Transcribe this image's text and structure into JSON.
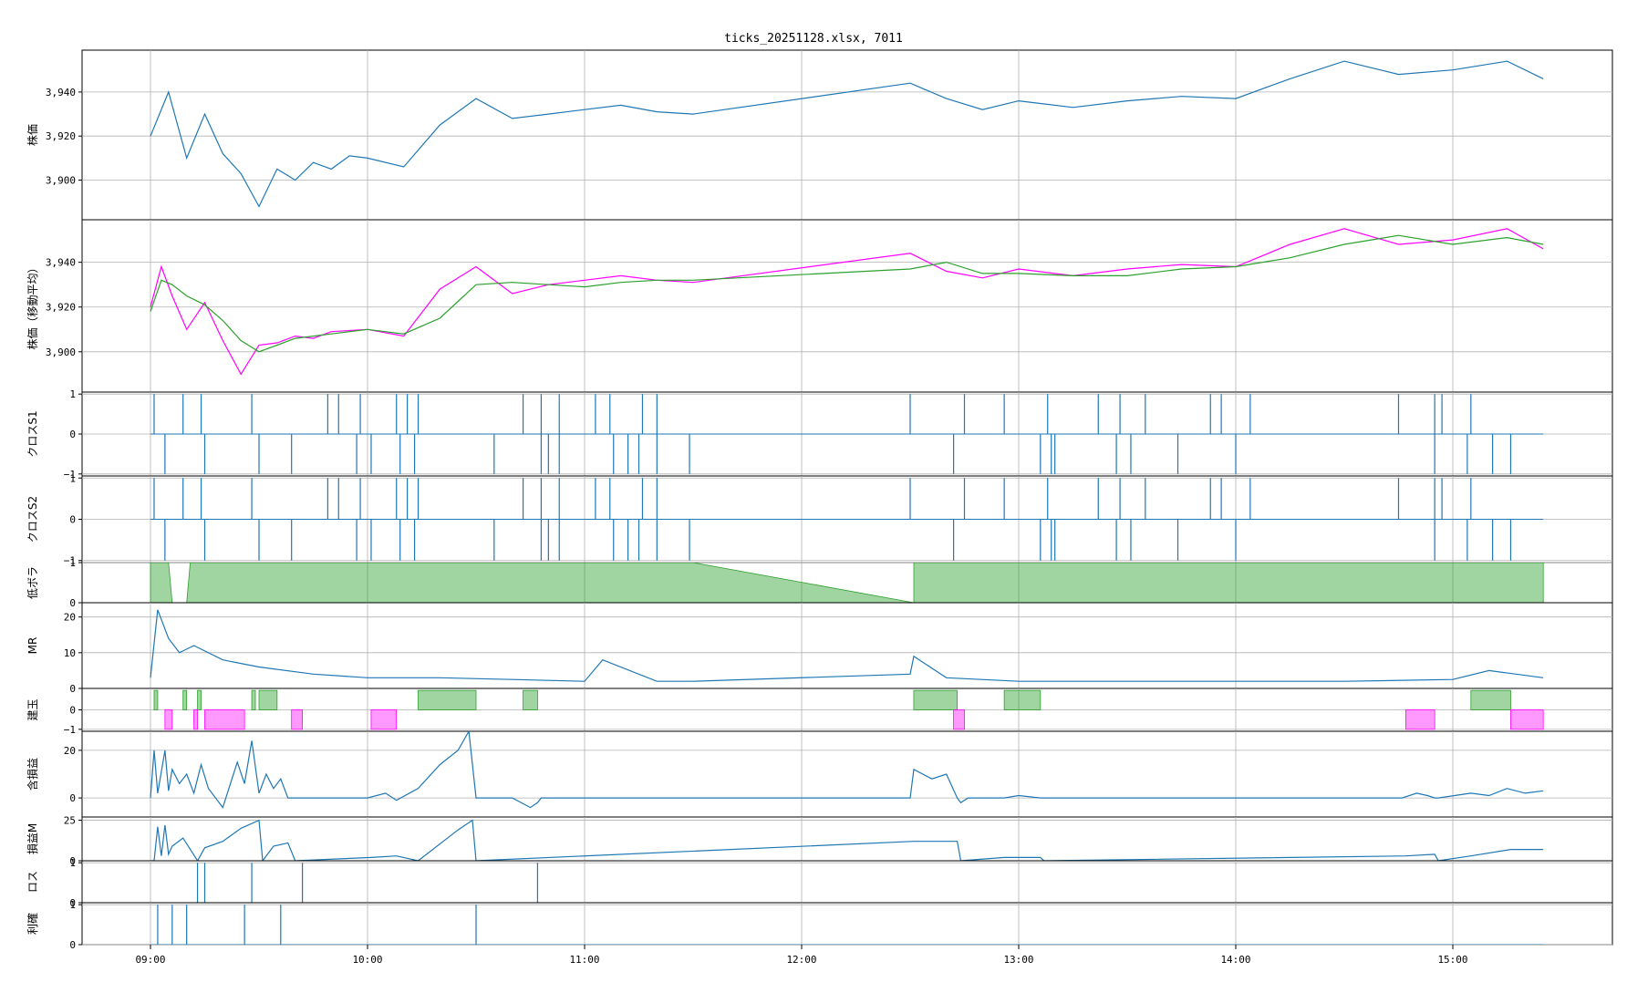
{
  "title": "ticks_20251128.xlsx, 7011",
  "colors": {
    "primary": "#1f77b4",
    "magenta": "#ff00ff",
    "green": "#2ca02c",
    "grid": "#b0b0b0",
    "axis": "#000000"
  },
  "x_ticks": [
    "09:00",
    "10:00",
    "11:00",
    "12:00",
    "13:00",
    "14:00",
    "15:00"
  ],
  "chart_data": [
    {
      "type": "line",
      "ylabel": "株価",
      "ylim": [
        3882,
        3959
      ],
      "yticks": [
        3900,
        3920,
        3940
      ],
      "ytick_labels": [
        "3,900",
        "3,920",
        "3,940"
      ],
      "series": [
        {
          "times": [
            "09:00",
            "09:05",
            "09:10",
            "09:15",
            "09:20",
            "09:25",
            "09:30",
            "09:35",
            "09:40",
            "09:45",
            "09:50",
            "09:55",
            "10:00",
            "10:10",
            "10:20",
            "10:30",
            "10:40",
            "10:50",
            "11:00",
            "11:10",
            "11:20",
            "11:30",
            "12:30",
            "12:40",
            "12:50",
            "13:00",
            "13:15",
            "13:30",
            "13:45",
            "14:00",
            "14:15",
            "14:30",
            "14:45",
            "15:00",
            "15:15",
            "15:25"
          ],
          "values": [
            3920,
            3940,
            3910,
            3930,
            3912,
            3903,
            3888,
            3905,
            3900,
            3908,
            3905,
            3911,
            3910,
            3906,
            3925,
            3937,
            3928,
            3930,
            3932,
            3934,
            3931,
            3930,
            3944,
            3937,
            3932,
            3936,
            3933,
            3936,
            3938,
            3937,
            3946,
            3954,
            3948,
            3950,
            3954,
            3946
          ]
        }
      ]
    },
    {
      "type": "line",
      "ylabel": "株価（移動平均）",
      "ylim": [
        3882,
        3959
      ],
      "yticks": [
        3900,
        3920,
        3940
      ],
      "ytick_labels": [
        "3,900",
        "3,920",
        "3,940"
      ],
      "series": [
        {
          "times": [
            "09:00",
            "09:03",
            "09:06",
            "09:10",
            "09:15",
            "09:20",
            "09:25",
            "09:30",
            "09:35",
            "09:40",
            "09:45",
            "09:50",
            "10:00",
            "10:10",
            "10:20",
            "10:30",
            "10:40",
            "10:50",
            "11:00",
            "11:10",
            "11:20",
            "11:30",
            "12:30",
            "12:40",
            "12:50",
            "13:00",
            "13:15",
            "13:30",
            "13:45",
            "14:00",
            "14:15",
            "14:30",
            "14:45",
            "15:00",
            "15:15",
            "15:25"
          ],
          "values": [
            3920,
            3938,
            3925,
            3910,
            3922,
            3905,
            3890,
            3903,
            3904,
            3907,
            3906,
            3909,
            3910,
            3907,
            3928,
            3938,
            3926,
            3930,
            3932,
            3934,
            3932,
            3931,
            3944,
            3936,
            3933,
            3937,
            3934,
            3937,
            3939,
            3938,
            3948,
            3955,
            3948,
            3950,
            3955,
            3946
          ]
        },
        {
          "times": [
            "09:00",
            "09:03",
            "09:06",
            "09:10",
            "09:15",
            "09:20",
            "09:25",
            "09:30",
            "09:35",
            "09:40",
            "09:45",
            "09:50",
            "10:00",
            "10:10",
            "10:20",
            "10:30",
            "10:40",
            "10:50",
            "11:00",
            "11:10",
            "11:20",
            "11:30",
            "12:30",
            "12:40",
            "12:50",
            "13:00",
            "13:15",
            "13:30",
            "13:45",
            "14:00",
            "14:15",
            "14:30",
            "14:45",
            "15:00",
            "15:15",
            "15:25"
          ],
          "values": [
            3918,
            3932,
            3930,
            3925,
            3921,
            3914,
            3905,
            3900,
            3903,
            3906,
            3907,
            3908,
            3910,
            3908,
            3915,
            3930,
            3931,
            3930,
            3929,
            3931,
            3932,
            3932,
            3937,
            3940,
            3935,
            3935,
            3934,
            3934,
            3937,
            3938,
            3942,
            3948,
            3952,
            3948,
            3951,
            3948
          ]
        }
      ]
    },
    {
      "type": "event",
      "ylabel": "クロスS1",
      "ylim": [
        -1.05,
        1.05
      ],
      "yticks": [
        -1,
        0,
        1
      ],
      "ytick_labels": [
        "−1",
        "0",
        "1"
      ],
      "up_times": [
        "09:01",
        "09:09",
        "09:14",
        "09:28",
        "09:49",
        "09:52",
        "09:58",
        "10:08",
        "10:11",
        "10:14",
        "10:43",
        "10:48",
        "10:53",
        "11:03",
        "11:07",
        "11:16",
        "11:20",
        "12:30",
        "12:45",
        "12:56",
        "13:08",
        "13:22",
        "13:28",
        "13:35",
        "13:53",
        "13:56",
        "14:04",
        "14:45",
        "14:55",
        "14:57",
        "15:05"
      ],
      "down_times": [
        "09:04",
        "09:15",
        "09:30",
        "09:39",
        "09:57",
        "10:01",
        "10:09",
        "10:13",
        "10:35",
        "10:48",
        "10:50",
        "10:53",
        "11:08",
        "11:12",
        "11:15",
        "11:20",
        "11:29",
        "12:42",
        "13:06",
        "13:09",
        "13:10",
        "13:27",
        "13:31",
        "13:44",
        "14:00",
        "14:55",
        "15:04",
        "15:11",
        "15:16"
      ]
    },
    {
      "type": "event",
      "ylabel": "クロスS2",
      "ylim": [
        -1.05,
        1.05
      ],
      "yticks": [
        -1,
        0,
        1
      ],
      "ytick_labels": [
        "−1",
        "0",
        "1"
      ],
      "up_times": [
        "09:01",
        "09:09",
        "09:14",
        "09:28",
        "09:49",
        "09:52",
        "09:58",
        "10:08",
        "10:11",
        "10:14",
        "10:43",
        "10:48",
        "10:53",
        "11:03",
        "11:07",
        "11:16",
        "11:20",
        "12:30",
        "12:45",
        "12:56",
        "13:08",
        "13:22",
        "13:28",
        "13:35",
        "13:53",
        "13:56",
        "14:04",
        "14:45",
        "14:55",
        "14:57",
        "15:05"
      ],
      "down_times": [
        "09:04",
        "09:15",
        "09:30",
        "09:39",
        "09:57",
        "10:01",
        "10:09",
        "10:13",
        "10:35",
        "10:48",
        "10:50",
        "10:53",
        "11:08",
        "11:12",
        "11:15",
        "11:20",
        "11:29",
        "12:42",
        "13:06",
        "13:09",
        "13:10",
        "13:27",
        "13:31",
        "13:44",
        "14:00",
        "14:55",
        "15:04",
        "15:11",
        "15:16"
      ]
    },
    {
      "type": "area",
      "ylabel": "低ボラ",
      "ylim": [
        0,
        1
      ],
      "yticks": [
        0,
        1
      ],
      "ytick_labels": [
        "0",
        "1"
      ],
      "segments": [
        {
          "times": [
            "09:00",
            "09:05",
            "09:06",
            "09:10",
            "09:11",
            "09:30",
            "09:31",
            "10:00",
            "10:01",
            "10:30",
            "10:31",
            "11:00",
            "11:01",
            "11:25",
            "11:30",
            "12:31",
            "12:31",
            "13:00",
            "13:01",
            "13:30",
            "13:31",
            "14:00",
            "14:01",
            "14:30",
            "14:31",
            "15:00",
            "15:01",
            "15:25"
          ],
          "values": [
            1,
            1,
            0,
            0,
            1,
            1,
            1,
            1,
            1,
            1,
            1,
            1,
            1,
            1,
            1,
            0,
            1,
            1,
            1,
            1,
            1,
            1,
            1,
            1,
            1,
            1,
            1,
            1
          ]
        }
      ]
    },
    {
      "type": "line",
      "ylabel": "MR",
      "ylim": [
        0,
        24
      ],
      "yticks": [
        0,
        10,
        20
      ],
      "ytick_labels": [
        "0",
        "10",
        "20"
      ],
      "series": [
        {
          "times": [
            "09:00",
            "09:02",
            "09:05",
            "09:08",
            "09:12",
            "09:20",
            "09:30",
            "09:45",
            "10:00",
            "10:20",
            "10:40",
            "11:00",
            "11:05",
            "11:20",
            "11:30",
            "12:30",
            "12:31",
            "12:40",
            "13:00",
            "13:30",
            "14:00",
            "14:30",
            "15:00",
            "15:10",
            "15:25"
          ],
          "values": [
            3,
            22,
            14,
            10,
            12,
            8,
            6,
            4,
            3,
            3,
            2.5,
            2,
            8,
            2,
            2,
            4,
            9,
            3,
            2,
            2,
            2,
            2,
            2.5,
            5,
            3
          ]
        }
      ]
    },
    {
      "type": "position",
      "ylabel": "建玉",
      "ylim": [
        -1.1,
        1.1
      ],
      "yticks": [
        -1,
        0
      ],
      "ytick_labels": [
        "−1",
        "0"
      ],
      "long_intervals": [
        [
          "09:01",
          "09:02"
        ],
        [
          "09:09",
          "09:10"
        ],
        [
          "09:13",
          "09:14"
        ],
        [
          "09:28",
          "09:29"
        ],
        [
          "09:30",
          "09:35"
        ],
        [
          "10:14",
          "10:30"
        ],
        [
          "10:43",
          "10:47"
        ],
        [
          "12:31",
          "12:43"
        ],
        [
          "12:56",
          "13:06"
        ],
        [
          "15:05",
          "15:16"
        ]
      ],
      "short_intervals": [
        [
          "09:04",
          "09:06"
        ],
        [
          "09:12",
          "09:13"
        ],
        [
          "09:15",
          "09:26"
        ],
        [
          "09:39",
          "09:42"
        ],
        [
          "10:01",
          "10:08"
        ],
        [
          "12:42",
          "12:45"
        ],
        [
          "14:47",
          "14:55"
        ],
        [
          "15:16",
          "15:25"
        ]
      ]
    },
    {
      "type": "line",
      "ylabel": "含損益",
      "ylim": [
        -8,
        28
      ],
      "yticks": [
        0,
        20
      ],
      "ytick_labels": [
        "0",
        "20"
      ],
      "series": [
        {
          "times": [
            "09:00",
            "09:01",
            "09:02",
            "09:04",
            "09:05",
            "09:06",
            "09:08",
            "09:10",
            "09:12",
            "09:14",
            "09:16",
            "09:20",
            "09:24",
            "09:26",
            "09:28",
            "09:30",
            "09:32",
            "09:34",
            "09:36",
            "09:38",
            "09:40",
            "09:42",
            "10:00",
            "10:05",
            "10:08",
            "10:14",
            "10:20",
            "10:25",
            "10:28",
            "10:30",
            "10:31",
            "10:40",
            "10:45",
            "10:47",
            "10:48",
            "12:30",
            "12:31",
            "12:36",
            "12:40",
            "12:43",
            "12:44",
            "12:46",
            "12:56",
            "13:00",
            "13:06",
            "13:07",
            "14:46",
            "14:50",
            "14:53",
            "14:55",
            "14:56",
            "15:05",
            "15:10",
            "15:15",
            "15:20",
            "15:25"
          ],
          "values": [
            0,
            20,
            2,
            20,
            3,
            12,
            6,
            10,
            2,
            14,
            4,
            -4,
            15,
            6,
            24,
            2,
            10,
            4,
            8,
            0,
            0,
            0,
            0,
            2,
            -1,
            4,
            14,
            20,
            28,
            0,
            0,
            0,
            -4,
            -2,
            0,
            0,
            12,
            8,
            10,
            0,
            -2,
            0,
            0,
            1,
            0,
            0,
            0,
            2,
            1,
            0,
            0,
            2,
            1,
            4,
            2,
            3
          ]
        }
      ]
    },
    {
      "type": "line",
      "ylabel": "損益M",
      "ylim": [
        0,
        27
      ],
      "yticks": [
        0,
        25
      ],
      "ytick_labels": [
        "0",
        "25"
      ],
      "series": [
        {
          "times": [
            "09:00",
            "09:01",
            "09:02",
            "09:03",
            "09:04",
            "09:05",
            "09:06",
            "09:09",
            "09:13",
            "09:15",
            "09:20",
            "09:25",
            "09:30",
            "09:31",
            "09:34",
            "09:38",
            "09:40",
            "10:01",
            "10:08",
            "10:14",
            "10:25",
            "10:29",
            "10:30",
            "12:31",
            "12:43",
            "12:44",
            "12:56",
            "13:06",
            "13:07",
            "14:47",
            "14:55",
            "14:56",
            "15:05",
            "15:16",
            "15:25"
          ],
          "values": [
            0,
            0,
            21,
            3,
            22,
            4,
            9,
            14,
            0,
            8,
            12,
            20,
            25,
            0,
            9,
            11,
            0,
            2,
            3,
            0,
            19,
            25,
            0,
            12,
            12,
            0,
            2,
            2,
            0,
            3,
            4,
            0,
            3,
            7,
            7
          ]
        }
      ]
    },
    {
      "type": "event",
      "ylabel": "ロス",
      "ylim": [
        0,
        1.05
      ],
      "yticks": [
        0,
        1
      ],
      "ytick_labels": [
        "0",
        "1"
      ],
      "up_times": [
        "09:13",
        "09:15",
        "09:28",
        "09:42",
        "10:47"
      ],
      "down_times": []
    },
    {
      "type": "event",
      "ylabel": "利確",
      "ylim": [
        0,
        1.05
      ],
      "yticks": [
        0,
        1
      ],
      "ytick_labels": [
        "0",
        "1"
      ],
      "up_times": [
        "09:02",
        "09:06",
        "09:10",
        "09:26",
        "09:36",
        "10:30"
      ],
      "down_times": []
    }
  ]
}
